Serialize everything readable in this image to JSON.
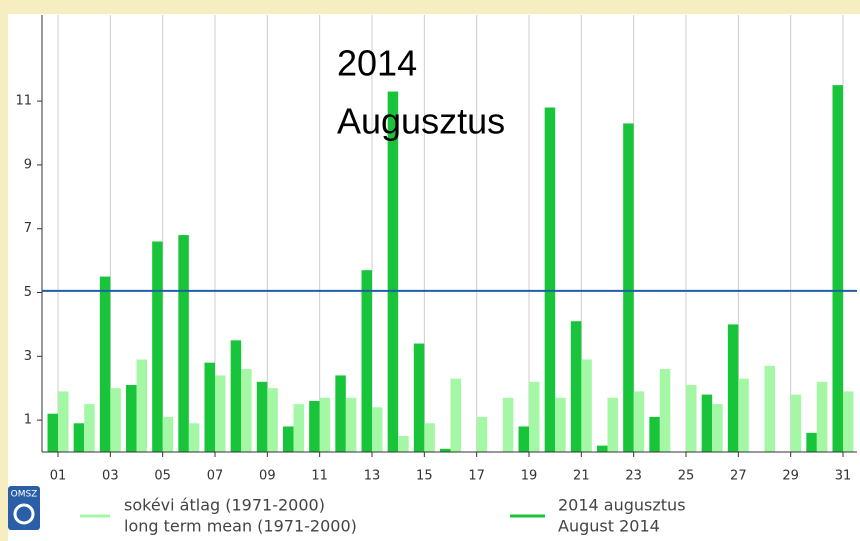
{
  "chart_data": {
    "type": "bar",
    "title": [
      "2014",
      "Augusztus"
    ],
    "logo_text": "OMSZ",
    "categories": [
      "01",
      null,
      "03",
      null,
      "05",
      null,
      "07",
      null,
      "09",
      null,
      "11",
      null,
      "13",
      null,
      "15",
      null,
      "17",
      null,
      "19",
      null,
      "21",
      null,
      "23",
      null,
      "25",
      null,
      "27",
      null,
      "29",
      null,
      "31"
    ],
    "series": [
      {
        "name": "2014 augusztus",
        "name_en": "August 2014",
        "color": "#18c43a",
        "values": [
          1.2,
          0.9,
          5.5,
          2.1,
          6.6,
          6.8,
          2.8,
          3.5,
          2.2,
          0.8,
          1.6,
          2.4,
          5.7,
          11.3,
          3.4,
          0.1,
          0,
          0,
          0.8,
          10.8,
          4.1,
          0.2,
          10.3,
          1.1,
          0,
          1.8,
          4.0,
          0,
          0,
          0.6,
          11.5
        ]
      },
      {
        "name": "sokévi átlag (1971-2000)",
        "name_en": "long term mean (1971-2000)",
        "color": "#a4f7a4",
        "values": [
          1.9,
          1.5,
          2.0,
          2.9,
          1.1,
          0.9,
          2.4,
          2.6,
          2.0,
          1.5,
          1.7,
          1.7,
          1.4,
          0.5,
          0.9,
          2.3,
          1.1,
          1.7,
          2.2,
          1.7,
          2.9,
          1.7,
          1.9,
          2.6,
          2.1,
          1.5,
          2.3,
          2.7,
          1.8,
          2.2,
          1.9
        ]
      }
    ],
    "mean_line": {
      "value": 5.05,
      "color": "#1f5fa8"
    },
    "ylim": [
      0,
      13.7
    ],
    "yticks": [
      1,
      3,
      5,
      7,
      9,
      11
    ],
    "grid": true
  }
}
